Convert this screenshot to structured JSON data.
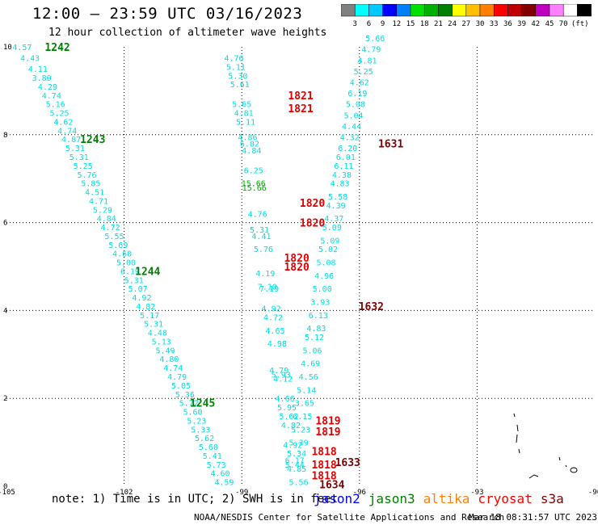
{
  "title": "12:00 – 23:59 UTC 03/16/2023",
  "subtitle": "12 hour collection of altimeter wave heights",
  "colorbar": {
    "unit_label": "(ft)",
    "ticks": [
      "3",
      "6",
      "9",
      "12",
      "15",
      "18",
      "21",
      "24",
      "27",
      "30",
      "33",
      "36",
      "39",
      "42",
      "45",
      "70"
    ],
    "colors": [
      "#808080",
      "#00ffff",
      "#00c8ff",
      "#0000ff",
      "#0080ff",
      "#00e000",
      "#00b000",
      "#008000",
      "#ffff00",
      "#ffc000",
      "#ff8000",
      "#ff0000",
      "#c00000",
      "#800000",
      "#c000c0",
      "#ff80ff",
      "#ffffff",
      "#000000"
    ]
  },
  "axes": {
    "x_ticks": [
      "-105",
      "-102",
      "-99",
      "-96",
      "-93",
      "-90"
    ],
    "y_ticks": [
      "0",
      "2",
      "4",
      "6",
      "8",
      "10"
    ]
  },
  "note": "note: 1) Time is in UTC; 2) SWH is in feet",
  "legend": [
    {
      "name": "jason2",
      "color": "#0000ff"
    },
    {
      "name": "jason3",
      "color": "#008000"
    },
    {
      "name": "altika",
      "color": "#ff8000"
    },
    {
      "name": "cryosat",
      "color": "#ff0000"
    },
    {
      "name": "s3a",
      "color": "#800000"
    }
  ],
  "credit": "NOAA/NESDIS Center for Satellite Applications and Research",
  "timestamp": "Mar 18 08:31:57 UTC 2023",
  "chart_data": {
    "type": "scatter",
    "xlim": [
      -105,
      -90
    ],
    "ylim": [
      0,
      10
    ],
    "grid": true,
    "tracks": [
      {
        "color": "#00e0e0",
        "points": [
          [
            -104.6,
            10,
            "4.57"
          ],
          [
            -104.4,
            9.75,
            "4.43"
          ],
          [
            -104.2,
            9.5,
            "4.11"
          ],
          [
            -104.1,
            9.3,
            "3.80"
          ],
          [
            -103.95,
            9.1,
            "4.29"
          ],
          [
            -103.85,
            8.9,
            "4.74"
          ],
          [
            -103.75,
            8.7,
            "5.16"
          ],
          [
            -103.65,
            8.5,
            "5.25"
          ],
          [
            -103.55,
            8.3,
            "4.62"
          ],
          [
            -103.45,
            8.1,
            "4.74"
          ],
          [
            -103.35,
            7.9,
            "4.87"
          ],
          [
            -103.25,
            7.7,
            "5.31"
          ],
          [
            -103.15,
            7.5,
            "5.31"
          ],
          [
            -103.05,
            7.3,
            "5.25"
          ],
          [
            -102.95,
            7.1,
            "5.76"
          ],
          [
            -102.85,
            6.9,
            "5.85"
          ],
          [
            -102.75,
            6.7,
            "4.51"
          ],
          [
            -102.65,
            6.5,
            "4.71"
          ],
          [
            -102.55,
            6.3,
            "5.29"
          ],
          [
            -102.45,
            6.1,
            "4.84"
          ],
          [
            -102.35,
            5.9,
            "4.72"
          ],
          [
            -102.25,
            5.7,
            "5.55"
          ],
          [
            -102.15,
            5.5,
            "5.69"
          ],
          [
            -102.05,
            5.3,
            "4.60"
          ],
          [
            -101.95,
            5.1,
            "5.00"
          ],
          [
            -101.85,
            4.9,
            "6.19"
          ],
          [
            -101.75,
            4.7,
            "5.31"
          ],
          [
            -101.65,
            4.5,
            "5.07"
          ],
          [
            -101.55,
            4.3,
            "4.92"
          ],
          [
            -101.45,
            4.1,
            "4.82"
          ],
          [
            -101.35,
            3.9,
            "5.17"
          ],
          [
            -101.25,
            3.7,
            "5.31"
          ],
          [
            -101.15,
            3.5,
            "4.48"
          ],
          [
            -101.05,
            3.3,
            "5.13"
          ],
          [
            -100.95,
            3.1,
            "5.49"
          ],
          [
            -100.85,
            2.9,
            "4.80"
          ],
          [
            -100.75,
            2.7,
            "4.74"
          ],
          [
            -100.65,
            2.5,
            "4.79"
          ],
          [
            -100.55,
            2.3,
            "5.05"
          ],
          [
            -100.45,
            2.1,
            "5.36"
          ],
          [
            -100.35,
            1.9,
            "5.72"
          ],
          [
            -100.25,
            1.7,
            "5.60"
          ],
          [
            -100.15,
            1.5,
            "5.23"
          ],
          [
            -100.05,
            1.3,
            "5.33"
          ],
          [
            -99.95,
            1.1,
            "5.62"
          ],
          [
            -99.85,
            0.9,
            "5.60"
          ],
          [
            -99.75,
            0.7,
            "5.41"
          ],
          [
            -99.65,
            0.5,
            "5.73"
          ],
          [
            -99.55,
            0.3,
            "4.60"
          ],
          [
            -99.45,
            0.1,
            "4.59"
          ]
        ]
      },
      {
        "color": "#00e0e0",
        "points": [
          [
            -99.2,
            9.75,
            "4.76"
          ],
          [
            -99.15,
            9.55,
            "5.11"
          ],
          [
            -99.1,
            9.35,
            "5.30"
          ],
          [
            -99.05,
            9.15,
            "5.61"
          ],
          [
            -99.0,
            8.7,
            "5.65"
          ],
          [
            -98.95,
            8.5,
            "4.81"
          ],
          [
            -98.9,
            8.3,
            "5.11"
          ],
          [
            -98.85,
            7.95,
            "4.86"
          ],
          [
            -98.8,
            7.8,
            "6.02"
          ],
          [
            -98.75,
            7.65,
            "4.84"
          ],
          [
            -98.7,
            7.2,
            "6.25"
          ],
          [
            -98.6,
            6.2,
            "4.76"
          ],
          [
            -98.55,
            5.85,
            "5.31"
          ],
          [
            -98.5,
            5.7,
            "4.41"
          ],
          [
            -98.45,
            5.4,
            "5.76"
          ],
          [
            -98.4,
            4.85,
            "4.19"
          ],
          [
            -98.35,
            4.55,
            "7.10"
          ],
          [
            -98.3,
            4.5,
            "7.19"
          ],
          [
            -98.25,
            4.05,
            "4.92"
          ],
          [
            -98.2,
            3.85,
            "4.72"
          ],
          [
            -98.15,
            3.55,
            "4.65"
          ],
          [
            -98.1,
            3.25,
            "4.98"
          ],
          [
            -98.05,
            2.65,
            "4.79"
          ],
          [
            -98.0,
            2.55,
            "5.93"
          ],
          [
            -97.95,
            2.45,
            "4.12"
          ],
          [
            -97.9,
            2.0,
            "4.66"
          ],
          [
            -97.85,
            1.8,
            "5.95"
          ],
          [
            -97.8,
            1.6,
            "5.62"
          ],
          [
            -97.75,
            1.4,
            "4.82"
          ],
          [
            -97.7,
            0.95,
            "4.92"
          ],
          [
            -97.65,
            0.6,
            "6.17"
          ],
          [
            -97.6,
            0.4,
            "4.85"
          ],
          [
            -97.55,
            0.1,
            "5.56"
          ]
        ]
      },
      {
        "color": "#00e0e0",
        "points": [
          [
            -95.6,
            10.2,
            "5.66"
          ],
          [
            -95.7,
            9.95,
            "4.79"
          ],
          [
            -95.8,
            9.7,
            "4.81"
          ],
          [
            -95.9,
            9.45,
            "5.25"
          ],
          [
            -96.0,
            9.2,
            "4.62"
          ],
          [
            -96.05,
            8.95,
            "6.19"
          ],
          [
            -96.1,
            8.7,
            "5.08"
          ],
          [
            -96.15,
            8.45,
            "5.04"
          ],
          [
            -96.2,
            8.2,
            "4.44"
          ],
          [
            -96.25,
            7.95,
            "4.32"
          ],
          [
            -96.3,
            7.7,
            "6.20"
          ],
          [
            -96.35,
            7.5,
            "6.01"
          ],
          [
            -96.4,
            7.3,
            "6.11"
          ],
          [
            -96.45,
            7.1,
            "4.38"
          ],
          [
            -96.5,
            6.9,
            "4.83"
          ],
          [
            -96.55,
            6.6,
            "5.58"
          ],
          [
            -96.6,
            6.4,
            "4.39"
          ],
          [
            -96.65,
            6.1,
            "4.37"
          ],
          [
            -96.7,
            5.9,
            "5.09"
          ],
          [
            -96.75,
            5.6,
            "5.09"
          ],
          [
            -96.8,
            5.4,
            "5.02"
          ],
          [
            -96.85,
            5.1,
            "5.08"
          ],
          [
            -96.9,
            4.8,
            "4.96"
          ],
          [
            -96.95,
            4.5,
            "5.00"
          ],
          [
            -97.0,
            4.2,
            "3.93"
          ],
          [
            -97.05,
            3.9,
            "6.13"
          ],
          [
            -97.1,
            3.6,
            "4.83"
          ],
          [
            -97.15,
            3.4,
            "5.12"
          ],
          [
            -97.2,
            3.1,
            "5.06"
          ],
          [
            -97.25,
            2.8,
            "4.69"
          ],
          [
            -97.3,
            2.5,
            "4.56"
          ],
          [
            -97.35,
            2.2,
            "5.14"
          ],
          [
            -97.4,
            1.9,
            "3.65"
          ],
          [
            -97.45,
            1.6,
            "6.15"
          ],
          [
            -97.5,
            1.3,
            "5.23"
          ],
          [
            -97.55,
            1.0,
            "5.39"
          ],
          [
            -97.6,
            0.75,
            "5.34"
          ],
          [
            -97.65,
            0.5,
            "5.44"
          ]
        ]
      },
      {
        "color": "#00b000",
        "points": [
          [
            -98.7,
            6.9,
            "15.66"
          ],
          [
            -98.68,
            6.8,
            "15.66"
          ]
        ]
      }
    ],
    "time_labels": [
      {
        "x": -103.7,
        "y": 10,
        "label": "1242",
        "color": "#008000"
      },
      {
        "x": -102.8,
        "y": 7.9,
        "label": "1243",
        "color": "#008000"
      },
      {
        "x": -101.4,
        "y": 4.9,
        "label": "1244",
        "color": "#008000"
      },
      {
        "x": -100.0,
        "y": 1.9,
        "label": "1245",
        "color": "#008000"
      },
      {
        "x": -97.5,
        "y": 8.9,
        "label": "1821",
        "color": "#e00000"
      },
      {
        "x": -97.5,
        "y": 8.6,
        "label": "1821",
        "color": "#e00000"
      },
      {
        "x": -97.2,
        "y": 6.45,
        "label": "1820",
        "color": "#e00000"
      },
      {
        "x": -97.2,
        "y": 6.0,
        "label": "1820",
        "color": "#e00000"
      },
      {
        "x": -97.6,
        "y": 5.2,
        "label": "1820",
        "color": "#e00000"
      },
      {
        "x": -97.6,
        "y": 5.0,
        "label": "1820",
        "color": "#e00000"
      },
      {
        "x": -96.8,
        "y": 1.5,
        "label": "1819",
        "color": "#e00000"
      },
      {
        "x": -96.8,
        "y": 1.25,
        "label": "1819",
        "color": "#e00000"
      },
      {
        "x": -96.9,
        "y": 0.8,
        "label": "1818",
        "color": "#e00000"
      },
      {
        "x": -96.3,
        "y": 0.55,
        "label": "1633",
        "color": "#800000"
      },
      {
        "x": -96.9,
        "y": 0.5,
        "label": "1818",
        "color": "#e00000"
      },
      {
        "x": -96.9,
        "y": 0.25,
        "label": "1818",
        "color": "#e00000"
      },
      {
        "x": -96.7,
        "y": 0.05,
        "label": "1634",
        "color": "#800000"
      },
      {
        "x": -95.2,
        "y": 7.8,
        "label": "1631",
        "color": "#800000"
      },
      {
        "x": -95.7,
        "y": 4.1,
        "label": "1632",
        "color": "#800000"
      }
    ]
  }
}
